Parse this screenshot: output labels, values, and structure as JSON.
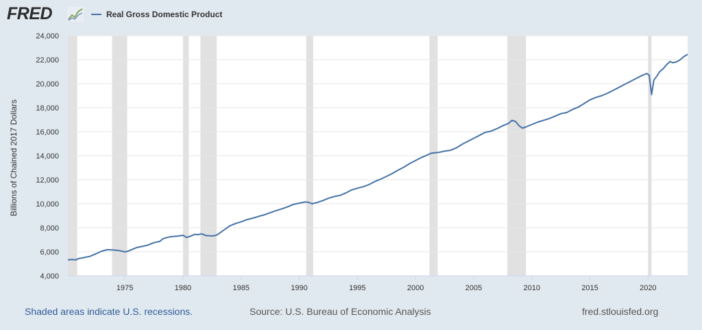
{
  "header": {
    "logo_text": "FRED",
    "logo_icon": "line-chart-icon"
  },
  "colors": {
    "background": "#e1e9f0",
    "plot_background": "#ffffff",
    "series": "#4572a7",
    "recession": "#e1e1e1",
    "note": "#2f5c99"
  },
  "footer": {
    "note": "Shaded areas indicate U.S. recessions.",
    "source": "Source: U.S. Bureau of Economic Analysis",
    "site": "fred.stlouisfed.org"
  },
  "chart_data": {
    "type": "line",
    "ylabel": "Billions of Chained 2017 Dollars",
    "ylim": [
      4000,
      24000
    ],
    "yticks": [
      4000,
      6000,
      8000,
      10000,
      12000,
      14000,
      16000,
      18000,
      20000,
      22000,
      24000
    ],
    "ytick_labels": [
      "4,000",
      "6,000",
      "8,000",
      "10,000",
      "12,000",
      "14,000",
      "16,000",
      "18,000",
      "20,000",
      "22,000",
      "24,000"
    ],
    "xlim": [
      1970.1,
      2023.4
    ],
    "xticks": [
      1975,
      1980,
      1985,
      1990,
      1995,
      2000,
      2005,
      2010,
      2015,
      2020
    ],
    "xtick_labels": [
      "1975",
      "1980",
      "1985",
      "1990",
      "1995",
      "2000",
      "2005",
      "2010",
      "2015",
      "2020"
    ],
    "grid": "horizontal",
    "recessions": [
      [
        1970.0,
        1970.9
      ],
      [
        1973.9,
        1975.2
      ],
      [
        1980.0,
        1980.5
      ],
      [
        1981.5,
        1982.9
      ],
      [
        1990.6,
        1991.2
      ],
      [
        2001.2,
        2001.9
      ],
      [
        2007.9,
        2009.5
      ],
      [
        2020.0,
        2020.3
      ]
    ],
    "series": [
      {
        "name": "Real Gross Domestic Product",
        "x": [
          1970.1,
          1970.5,
          1970.8,
          1971.0,
          1971.5,
          1972.0,
          1972.5,
          1973.0,
          1973.5,
          1974.0,
          1974.5,
          1975.0,
          1975.2,
          1975.5,
          1976.0,
          1976.5,
          1977.0,
          1977.5,
          1978.0,
          1978.3,
          1978.7,
          1979.0,
          1979.5,
          1980.0,
          1980.3,
          1980.6,
          1981.0,
          1981.3,
          1981.6,
          1982.0,
          1982.5,
          1982.8,
          1983.0,
          1983.5,
          1984.0,
          1984.5,
          1985.0,
          1985.5,
          1986.0,
          1986.5,
          1987.0,
          1987.5,
          1988.0,
          1988.5,
          1989.0,
          1989.5,
          1990.0,
          1990.5,
          1990.8,
          1991.1,
          1991.5,
          1992.0,
          1992.5,
          1993.0,
          1993.5,
          1994.0,
          1994.5,
          1995.0,
          1995.5,
          1996.0,
          1996.5,
          1997.0,
          1997.5,
          1998.0,
          1998.5,
          1999.0,
          1999.5,
          2000.0,
          2000.5,
          2001.0,
          2001.3,
          2001.7,
          2002.0,
          2002.5,
          2003.0,
          2003.5,
          2004.0,
          2004.5,
          2005.0,
          2005.5,
          2006.0,
          2006.5,
          2007.0,
          2007.5,
          2008.0,
          2008.3,
          2008.6,
          2008.9,
          2009.2,
          2009.5,
          2010.0,
          2010.5,
          2011.0,
          2011.5,
          2012.0,
          2012.5,
          2013.0,
          2013.5,
          2014.0,
          2014.5,
          2015.0,
          2015.5,
          2016.0,
          2016.5,
          2017.0,
          2017.5,
          2018.0,
          2018.5,
          2019.0,
          2019.5,
          2019.9,
          2020.1,
          2020.3,
          2020.5,
          2020.8,
          2021.0,
          2021.3,
          2021.6,
          2021.9,
          2022.1,
          2022.4,
          2022.7,
          2023.0,
          2023.4
        ],
        "y": [
          5340,
          5360,
          5330,
          5430,
          5520,
          5620,
          5820,
          6050,
          6180,
          6150,
          6100,
          6000,
          6020,
          6150,
          6350,
          6450,
          6560,
          6760,
          6860,
          7100,
          7210,
          7260,
          7300,
          7370,
          7200,
          7280,
          7450,
          7430,
          7500,
          7350,
          7320,
          7360,
          7450,
          7800,
          8150,
          8350,
          8500,
          8680,
          8800,
          8950,
          9080,
          9250,
          9420,
          9580,
          9750,
          9950,
          10050,
          10150,
          10120,
          10000,
          10100,
          10250,
          10450,
          10600,
          10700,
          10900,
          11150,
          11300,
          11420,
          11600,
          11850,
          12050,
          12280,
          12520,
          12800,
          13050,
          13350,
          13600,
          13850,
          14050,
          14200,
          14250,
          14280,
          14380,
          14450,
          14650,
          14950,
          15200,
          15450,
          15700,
          15950,
          16050,
          16250,
          16500,
          16700,
          16950,
          16850,
          16500,
          16300,
          16400,
          16600,
          16800,
          16950,
          17100,
          17300,
          17500,
          17600,
          17850,
          18050,
          18350,
          18650,
          18850,
          19000,
          19200,
          19450,
          19700,
          19950,
          20200,
          20450,
          20700,
          20850,
          20700,
          19100,
          20300,
          20700,
          21000,
          21250,
          21600,
          21850,
          21750,
          21800,
          21950,
          22200,
          22450
        ]
      }
    ]
  }
}
